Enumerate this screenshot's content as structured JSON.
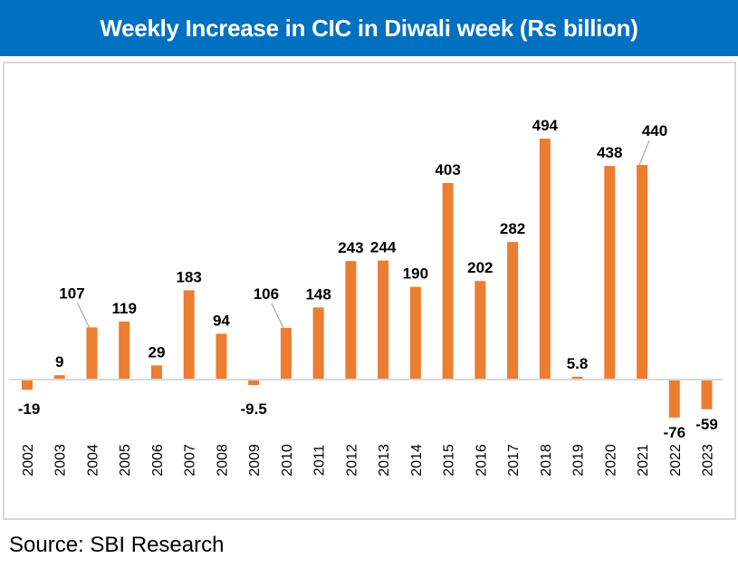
{
  "source": "Source: SBI Research",
  "colors": {
    "bar": "#ED7D31",
    "title_band": "#0070C0",
    "axis": "#D9D9D9",
    "leader": "#A6A6A6"
  },
  "chart_data": {
    "type": "bar",
    "title": "Weekly Increase in CIC in Diwali week (Rs billion)",
    "xlabel": "",
    "ylabel": "",
    "categories": [
      "2002",
      "2003",
      "2004",
      "2005",
      "2006",
      "2007",
      "2008",
      "2009",
      "2010",
      "2011",
      "2012",
      "2013",
      "2014",
      "2015",
      "2016",
      "2017",
      "2018",
      "2019",
      "2020",
      "2021",
      "2022",
      "2023"
    ],
    "values": [
      -19,
      9,
      107,
      119,
      29,
      183,
      94,
      -9.5,
      106,
      148,
      243,
      244,
      190,
      403,
      202,
      282,
      494,
      5.8,
      438,
      440,
      -76,
      -59
    ],
    "data_labels": [
      "-19",
      "9",
      "107",
      "119",
      "29",
      "183",
      "94",
      "-9.5",
      "106",
      "148",
      "243",
      "244",
      "190",
      "403",
      "202",
      "282",
      "494",
      "5.8",
      "438",
      "440",
      "-76",
      "-59"
    ],
    "leader_lines": [
      "2004",
      "2010",
      "2021"
    ],
    "ylim": [
      -76,
      494
    ],
    "grid": false,
    "legend": "none",
    "x_tick_rotation": "vertical"
  }
}
